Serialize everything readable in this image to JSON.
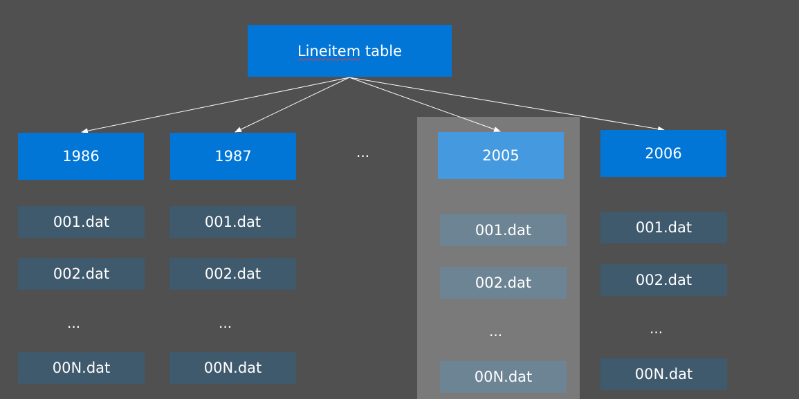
{
  "root": {
    "label_a": "Lineitem",
    "label_b": " table"
  },
  "years": [
    "1986",
    "1987",
    "2005",
    "2006"
  ],
  "ellipsis": "...",
  "files": {
    "f001": "001.dat",
    "f002": "002.dat",
    "fN": "00N.dat"
  },
  "colors": {
    "background": "#505050",
    "header_box": "#0176d7",
    "highlight_header": "#4499df",
    "file_box": "#3f596d",
    "highlight_file": "#6d8494",
    "highlight_band": "#7a7a7a"
  }
}
